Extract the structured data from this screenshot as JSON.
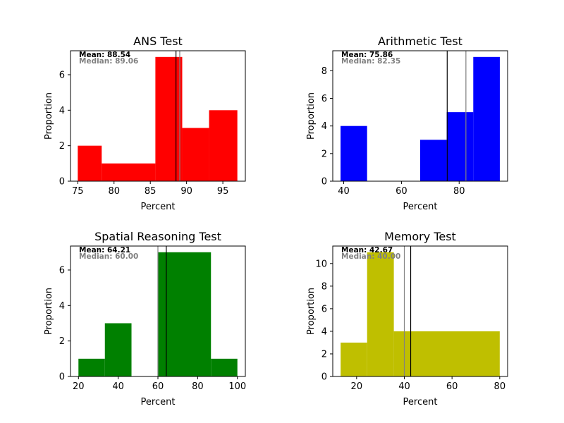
{
  "chart_data": [
    {
      "type": "histogram",
      "title": "ANS Test",
      "xlabel": "Percent",
      "ylabel": "Proportion",
      "color": "#ff0000",
      "bins": [
        {
          "x0": 75.0,
          "x1": 78.3,
          "value": 2
        },
        {
          "x0": 78.3,
          "x1": 85.7,
          "value": 1
        },
        {
          "x0": 85.7,
          "x1": 89.4,
          "value": 7
        },
        {
          "x0": 89.4,
          "x1": 93.1,
          "value": 3
        },
        {
          "x0": 93.1,
          "x1": 97.0,
          "value": 4
        }
      ],
      "xlim": [
        74.0,
        98.1
      ],
      "ylim": [
        0,
        7.35
      ],
      "xticks": [
        75,
        80,
        85,
        90,
        95
      ],
      "yticks": [
        0,
        2,
        4,
        6
      ],
      "mean": 88.54,
      "median": 89.06,
      "mean_label": "Mean: 88.54",
      "median_label": "Median: 89.06"
    },
    {
      "type": "histogram",
      "title": "Arithmetic Test",
      "xlabel": "Percent",
      "ylabel": "Proportion",
      "color": "#0000ff",
      "bins": [
        {
          "x0": 38.9,
          "x1": 48.1,
          "value": 4
        },
        {
          "x0": 48.1,
          "x1": 66.5,
          "value": 0
        },
        {
          "x0": 66.5,
          "x1": 75.7,
          "value": 3
        },
        {
          "x0": 75.7,
          "x1": 84.9,
          "value": 5
        },
        {
          "x0": 84.9,
          "x1": 94.1,
          "value": 9
        }
      ],
      "xlim": [
        36.2,
        96.8
      ],
      "ylim": [
        0,
        9.45
      ],
      "xticks": [
        40,
        60,
        80
      ],
      "yticks": [
        0,
        2,
        4,
        6,
        8
      ],
      "mean": 75.86,
      "median": 82.35,
      "mean_label": "Mean: 75.86",
      "median_label": "Median: 82.35"
    },
    {
      "type": "histogram",
      "title": "Spatial Reasoning Test",
      "xlabel": "Percent",
      "ylabel": "Proportion",
      "color": "#008000",
      "bins": [
        {
          "x0": 20.0,
          "x1": 33.3,
          "value": 1
        },
        {
          "x0": 33.3,
          "x1": 46.7,
          "value": 3
        },
        {
          "x0": 46.7,
          "x1": 60.0,
          "value": 0
        },
        {
          "x0": 60.0,
          "x1": 86.7,
          "value": 7
        },
        {
          "x0": 86.7,
          "x1": 100.0,
          "value": 1
        }
      ],
      "xlim": [
        16.0,
        104.0
      ],
      "ylim": [
        0,
        7.35
      ],
      "xticks": [
        20,
        40,
        60,
        80,
        100
      ],
      "yticks": [
        0,
        2,
        4,
        6
      ],
      "mean": 64.21,
      "median": 60.0,
      "mean_label": "Mean: 64.21",
      "median_label": "Median: 60.00"
    },
    {
      "type": "histogram",
      "title": "Memory Test",
      "xlabel": "Percent",
      "ylabel": "Proportion",
      "color": "#bfbf00",
      "bins": [
        {
          "x0": 13.3,
          "x1": 24.4,
          "value": 3
        },
        {
          "x0": 24.4,
          "x1": 35.6,
          "value": 11
        },
        {
          "x0": 35.6,
          "x1": 80.0,
          "value": 4
        }
      ],
      "xlim": [
        10.0,
        83.3
      ],
      "ylim": [
        0,
        11.55
      ],
      "xticks": [
        20,
        40,
        60,
        80
      ],
      "yticks": [
        0,
        2,
        4,
        6,
        8,
        10
      ],
      "mean": 42.67,
      "median": 40.0,
      "mean_label": "Mean: 42.67",
      "median_label": "Median: 40.00"
    }
  ]
}
